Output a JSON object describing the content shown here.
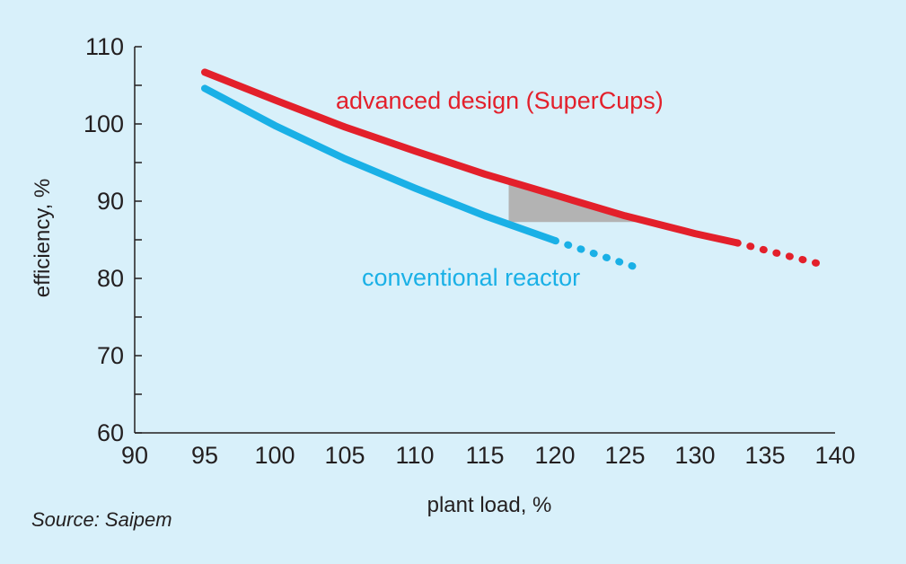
{
  "chart_data": {
    "type": "line",
    "xlabel": "plant load, %",
    "ylabel": "efficiency, %",
    "xlim": [
      90,
      140
    ],
    "ylim": [
      60,
      110
    ],
    "x_ticks": [
      90,
      95,
      100,
      105,
      110,
      115,
      120,
      125,
      130,
      135,
      140
    ],
    "y_ticks": [
      60,
      70,
      80,
      90,
      100,
      110
    ],
    "y_minor_step": 5,
    "grid": false,
    "series": [
      {
        "name": "advanced design (SuperCups)",
        "color": "#e3202b",
        "points": [
          [
            95,
            106.7
          ],
          [
            100,
            103.1
          ],
          [
            105,
            99.6
          ],
          [
            110,
            96.5
          ],
          [
            115,
            93.5
          ],
          [
            120,
            90.8
          ],
          [
            125,
            88.1
          ],
          [
            130,
            85.8
          ],
          [
            133,
            84.6
          ]
        ],
        "projected_points": [
          [
            133,
            84.6
          ],
          [
            136,
            83.2
          ],
          [
            139.3,
            81.7
          ]
        ]
      },
      {
        "name": "conventional reactor",
        "color": "#1ab0e6",
        "points": [
          [
            95,
            104.6
          ],
          [
            100,
            99.8
          ],
          [
            105,
            95.5
          ],
          [
            110,
            91.7
          ],
          [
            115,
            88.1
          ],
          [
            120,
            84.9
          ]
        ],
        "projected_points": [
          [
            120,
            84.9
          ],
          [
            123,
            83.1
          ],
          [
            125.7,
            81.5
          ]
        ]
      }
    ],
    "shaded_region": {
      "color": "#b3b3b3",
      "points": [
        [
          116.7,
          92.2
        ],
        [
          126.5,
          87.3
        ],
        [
          116.7,
          87.3
        ]
      ]
    },
    "source": "Source: Saipem"
  }
}
